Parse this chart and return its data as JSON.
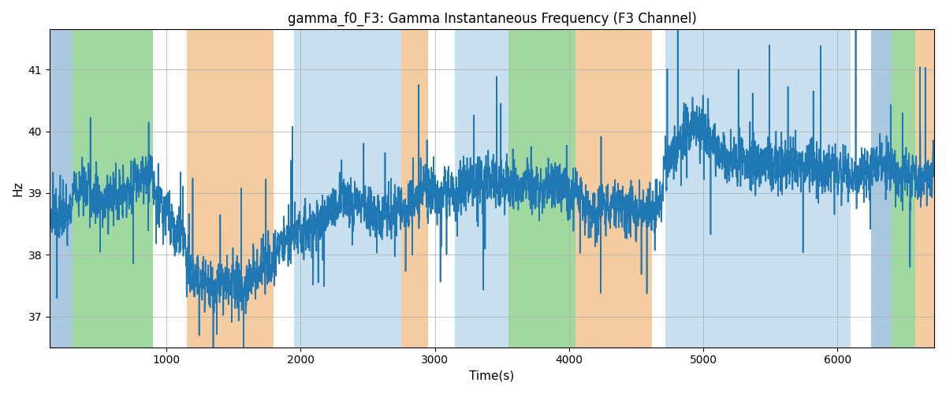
{
  "title": "gamma_f0_F3: Gamma Instantaneous Frequency (F3 Channel)",
  "xlabel": "Time(s)",
  "ylabel": "Hz",
  "ylim": [
    36.5,
    41.65
  ],
  "xlim": [
    130,
    6720
  ],
  "yticks": [
    37,
    38,
    39,
    40,
    41
  ],
  "xticks": [
    1000,
    2000,
    3000,
    4000,
    5000,
    6000
  ],
  "bg_segments": [
    {
      "start": 130,
      "end": 300,
      "color": "#aac8e0"
    },
    {
      "start": 300,
      "end": 900,
      "color": "#a0d8a0"
    },
    {
      "start": 900,
      "end": 1150,
      "color": "#ffffff"
    },
    {
      "start": 1150,
      "end": 1800,
      "color": "#f5ccA0"
    },
    {
      "start": 1800,
      "end": 1950,
      "color": "#ffffff"
    },
    {
      "start": 1950,
      "end": 2750,
      "color": "#c8dff0"
    },
    {
      "start": 2750,
      "end": 2950,
      "color": "#f5ccA0"
    },
    {
      "start": 2950,
      "end": 3150,
      "color": "#ffffff"
    },
    {
      "start": 3150,
      "end": 3550,
      "color": "#c8dff0"
    },
    {
      "start": 3550,
      "end": 4050,
      "color": "#a0d8a0"
    },
    {
      "start": 4050,
      "end": 4620,
      "color": "#f5ccA0"
    },
    {
      "start": 4620,
      "end": 4720,
      "color": "#ffffff"
    },
    {
      "start": 4720,
      "end": 6100,
      "color": "#c8dff0"
    },
    {
      "start": 6100,
      "end": 6250,
      "color": "#ffffff"
    },
    {
      "start": 6250,
      "end": 6400,
      "color": "#aac8e0"
    },
    {
      "start": 6400,
      "end": 6580,
      "color": "#a0d8a0"
    },
    {
      "start": 6580,
      "end": 6720,
      "color": "#f5ccA0"
    }
  ],
  "line_color": "#1f77b4",
  "line_width": 1.2,
  "grid_color": "#b0b0b0",
  "grid_alpha": 0.8,
  "seed": 42,
  "base_freq": 38.8,
  "figsize": [
    12,
    5
  ],
  "dpi": 100
}
